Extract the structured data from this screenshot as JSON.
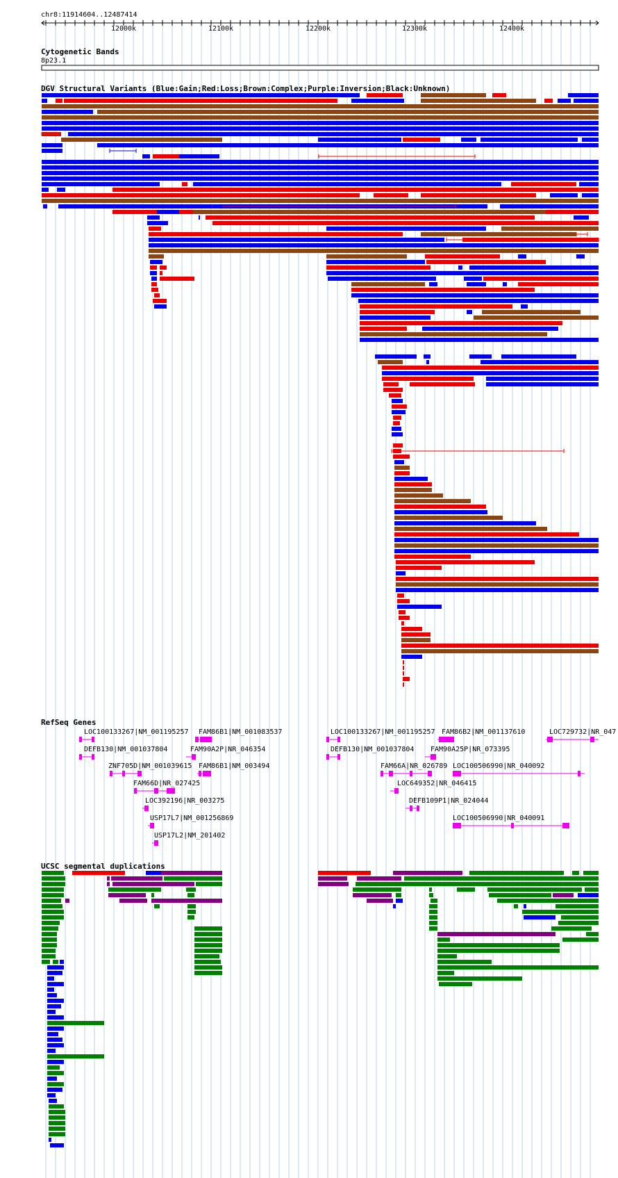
{
  "ruler": {
    "location": "chr8:11914604..12487414",
    "ticks": [
      "12000k",
      "12100k",
      "12200k",
      "12300k",
      "12400k"
    ]
  },
  "cytoband": {
    "title": "Cytogenetic Bands",
    "band": "8p23.1"
  },
  "dgv": {
    "title": "DGV Structural Variants (Blue:Gain;Red:Loss;Brown:Complex;Purple:Inversion;Black:Unknown)",
    "colors": {
      "gain": "#0000ee",
      "loss": "#ee0000",
      "complex": "#8b4513",
      "inversion": "#800080",
      "unknown": "#000000"
    }
  },
  "refseq": {
    "title": "RefSeq Genes",
    "color": "#ee00ee",
    "genes": [
      "LOC100133267|NM_001195257",
      "FAM86B1|NM_001083537",
      "DEFB130|NM_001037804",
      "FAM90A2P|NR_046354",
      "ZNF705D|NM_001039615",
      "FAM86B1|NM_003494",
      "FAM66D|NR_027425",
      "LOC392196|NR_003275",
      "USP17L7|NM_001256869",
      "USP17L2|NM_201402",
      "LOC100133267|NM_001195257",
      "FAM86B2|NM_001137610",
      "LOC729732|NR_047",
      "DEFB130|NM_001037804",
      "FAM90A25P|NR_073395",
      "FAM66A|NR_026789",
      "LOC100506990|NR_040092",
      "LOC649352|NR_046415",
      "DEFB109P1|NR_024044",
      "LOC100506990|NR_040091"
    ]
  },
  "segdups": {
    "title": "UCSC segmental duplications",
    "colors": {
      "red": "#ee0000",
      "purple": "#800080",
      "green": "#008000",
      "blue": "#0000ee"
    }
  }
}
